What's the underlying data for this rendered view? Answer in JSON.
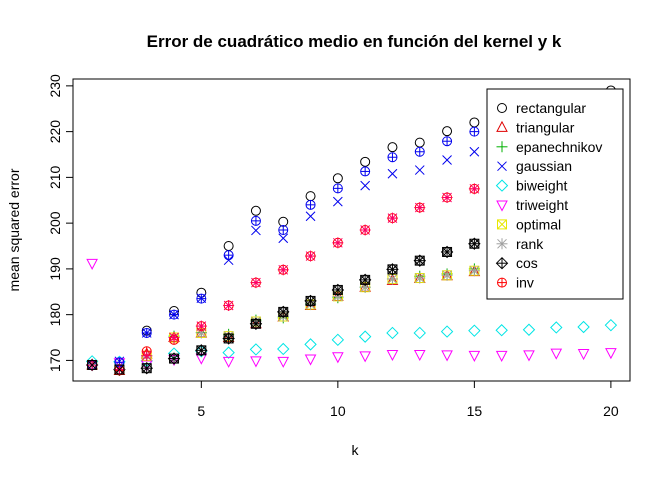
{
  "chart_data": {
    "type": "scatter",
    "title": "Error de cuadrático medio en función del kernel y k",
    "xlabel": "k",
    "ylabel": "mean squared error",
    "xlim": [
      0.3,
      20.7
    ],
    "ylim": [
      165.5,
      231.5
    ],
    "xticks": [
      5,
      10,
      15,
      20
    ],
    "yticks": [
      170,
      180,
      190,
      200,
      210,
      220,
      230
    ],
    "grid": false,
    "legend_position": "top-right",
    "x": [
      1,
      2,
      3,
      4,
      5,
      6,
      7,
      8,
      9,
      10,
      11,
      12,
      13,
      14,
      15,
      16,
      17,
      18,
      19,
      20
    ],
    "series": [
      {
        "name": "rectangular",
        "marker": "circle",
        "color": "#000000",
        "values": [
          169,
          169.5,
          176.5,
          180.8,
          184.8,
          195,
          202.7,
          200.3,
          205.9,
          209.8,
          213.4,
          216.6,
          217.6,
          220.1,
          222,
          224.6,
          226.2,
          227.3,
          228,
          229
        ]
      },
      {
        "name": "triangular",
        "marker": "triangle-up",
        "color": "#df0000",
        "values": [
          169,
          167.8,
          171.4,
          175,
          176,
          175,
          178,
          179.5,
          182,
          184,
          186,
          187.5,
          187.9,
          188.5,
          189.4,
          190,
          190.2,
          190.4,
          190.5,
          190.5
        ]
      },
      {
        "name": "epanechnikov",
        "marker": "plus",
        "color": "#00b000",
        "values": [
          169,
          167.8,
          171,
          175.3,
          176.1,
          175.7,
          178.8,
          179.3,
          182.3,
          183.7,
          186,
          187.8,
          188.4,
          188.9,
          190,
          190.5,
          190.8,
          191,
          191.1,
          191.2
        ]
      },
      {
        "name": "gaussian",
        "marker": "x",
        "color": "#0000ee",
        "values": [
          169,
          169.8,
          176,
          180,
          183.6,
          191.9,
          198.4,
          196.7,
          201.5,
          204.7,
          208.2,
          210.8,
          211.6,
          213.8,
          215.6,
          217,
          218,
          218.8,
          219.5,
          220
        ]
      },
      {
        "name": "biweight",
        "marker": "diamond",
        "color": "#00e5e5",
        "values": [
          169.8,
          169.7,
          169.9,
          171.5,
          172,
          171.7,
          172.4,
          172.5,
          173.5,
          174.5,
          175.2,
          176,
          176,
          176.3,
          176.5,
          176.6,
          176.7,
          177.2,
          177.3,
          177.7
        ]
      },
      {
        "name": "triweight",
        "marker": "triangle-down",
        "color": "#ff00ff",
        "values": [
          191.2,
          169.5,
          169,
          170.2,
          170.5,
          169.8,
          169.9,
          169.8,
          170.3,
          170.8,
          171,
          171.3,
          171.3,
          171.2,
          171.1,
          171.1,
          171.2,
          171.6,
          171.5,
          171.7
        ]
      },
      {
        "name": "optimal",
        "marker": "square-x",
        "color": "#e8e800",
        "values": [
          169,
          168,
          171,
          175,
          176,
          175.3,
          178.5,
          179.6,
          182.2,
          184,
          186,
          187.8,
          188,
          188.6,
          189.6,
          190.2,
          190.4,
          190.6,
          190.8,
          191
        ]
      },
      {
        "name": "rank",
        "marker": "asterisk",
        "color": "#a0a0a0",
        "values": [
          169,
          168,
          171,
          175,
          176,
          175.3,
          178.5,
          179.6,
          182.2,
          184,
          186,
          187.8,
          188,
          188.6,
          189.6,
          190.2,
          190.4,
          190.6,
          190.8,
          191
        ]
      },
      {
        "name": "cos",
        "marker": "diamond-plus",
        "color": "#000000",
        "values": [
          169,
          168,
          168.3,
          170.4,
          172.2,
          174.8,
          178,
          180.6,
          183,
          185.4,
          187.6,
          189.9,
          191.8,
          193.7,
          195.5,
          197.2,
          198.8,
          200.2,
          201.5,
          202.7
        ]
      },
      {
        "name": "inv",
        "marker": "circle-plus",
        "color": "#ff0000",
        "values": [
          169,
          167.8,
          172,
          174.5,
          177.5,
          182,
          187,
          189.8,
          192.8,
          195.7,
          198.5,
          201.1,
          203.4,
          205.6,
          207.5,
          209.3,
          211,
          212.5,
          213.9,
          215.2
        ]
      }
    ],
    "overlays": [
      {
        "series": "rectangular",
        "marker": "circle-plus",
        "color": "#0000ee",
        "values": [
          169,
          169.6,
          176,
          180,
          183.5,
          193,
          200.5,
          198.5,
          204,
          207.6,
          211.3,
          214.4,
          215.6,
          217.9,
          220,
          222,
          223.5,
          224.6,
          225.4,
          226.2
        ]
      },
      {
        "series": "rank",
        "marker": "asterisk",
        "color": "#ff0066",
        "values": [
          169,
          168,
          171,
          175,
          177.5,
          182,
          187,
          189.8,
          192.8,
          195.7,
          198.5,
          201.1,
          203.4,
          205.6,
          207.5,
          209.3,
          211,
          212.5,
          213.9,
          215.2
        ]
      },
      {
        "series": "optimal",
        "marker": "square-x",
        "color": "#000000",
        "values": [
          169,
          168,
          168.3,
          170.4,
          172.2,
          174.8,
          178,
          180.6,
          183,
          185.4,
          187.6,
          189.9,
          191.8,
          193.7,
          195.5,
          197.2,
          198.8,
          200.2,
          201.5,
          202.7
        ]
      }
    ]
  }
}
